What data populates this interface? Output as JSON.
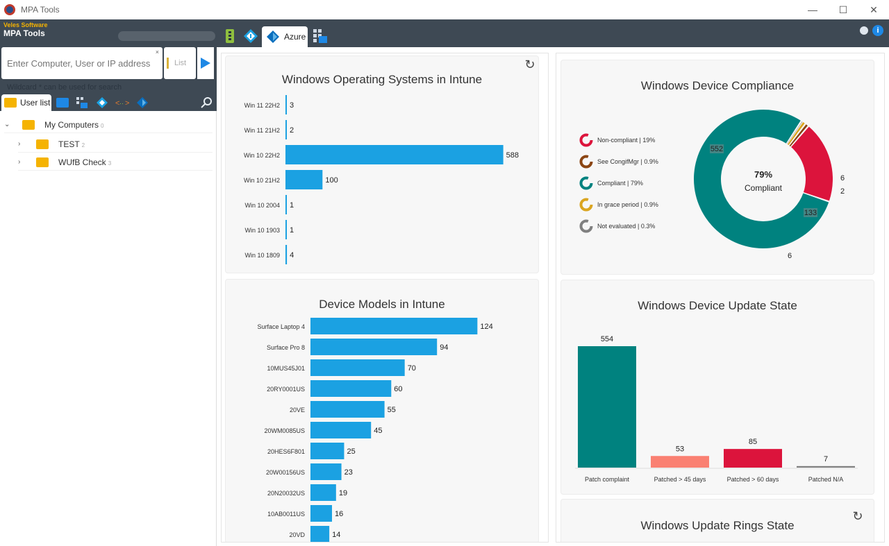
{
  "window": {
    "title": "MPA Tools",
    "minimize": "—",
    "maximize": "☐",
    "close": "✕"
  },
  "brand": {
    "company": "Veles Software",
    "product": "MPA Tools"
  },
  "top_tabs": {
    "azure_label": "Azure"
  },
  "search": {
    "placeholder": "Enter Computer, User or IP address",
    "clear": "×",
    "list_label": "List",
    "hint": "Wildcard * can be used for search"
  },
  "side_tabs": {
    "user_list": "User list"
  },
  "tree": {
    "root": {
      "label": "My Computers",
      "count": "0"
    },
    "children": [
      {
        "label": "TEST",
        "count": "2"
      },
      {
        "label": "WUfB Check",
        "count": "3"
      }
    ]
  },
  "panels": {
    "os": {
      "title": "Windows Operating Systems in Intune"
    },
    "models": {
      "title": "Device Models in Intune"
    },
    "compliance": {
      "title": "Windows Device Compliance",
      "center_pct": "79%",
      "center_label": "Compliant"
    },
    "update": {
      "title": "Windows Device Update State"
    },
    "rings": {
      "title": "Windows Update Rings State"
    }
  },
  "colors": {
    "bar_blue": "#1ba1e2",
    "teal": "#00827f",
    "crimson": "#dc143c",
    "salmon": "#fa8072",
    "brown": "#8b4513",
    "gold": "#daa520",
    "gray": "#808080"
  },
  "chart_data": [
    {
      "type": "bar",
      "orientation": "horizontal",
      "title": "Windows Operating Systems in Intune",
      "categories": [
        "Win 11  22H2",
        "Win 11  21H2",
        "Win 10  22H2",
        "Win 10  21H2",
        "Win 10  2004",
        "Win 10  1903",
        "Win 10  1809"
      ],
      "values": [
        3,
        2,
        588,
        100,
        1,
        1,
        4
      ],
      "xlim": [
        0,
        600
      ]
    },
    {
      "type": "bar",
      "orientation": "horizontal",
      "title": "Device Models in Intune",
      "categories": [
        "Surface Laptop 4",
        "Surface Pro 8",
        "10MUS45J01",
        "20RY0001US",
        "20VE",
        "20WM0085US",
        "20HES6F801",
        "20W00156US",
        "20N20032US",
        "10AB0011US",
        "20VD"
      ],
      "values": [
        124,
        94,
        70,
        60,
        55,
        45,
        25,
        23,
        19,
        16,
        14
      ],
      "xlim": [
        0,
        130
      ]
    },
    {
      "type": "pie",
      "donut": true,
      "title": "Windows Device Compliance",
      "legend_position": "left",
      "series": [
        {
          "name": "Non-compliant | 19%",
          "value": 133,
          "color": "#dc143c"
        },
        {
          "name": "See CongifMgr | 0.9%",
          "value": 6,
          "color": "#8b4513"
        },
        {
          "name": "Compliant | 79%",
          "value": 552,
          "color": "#00827f"
        },
        {
          "name": "In grace period | 0.9%",
          "value": 6,
          "color": "#daa520"
        },
        {
          "name": "Not evaluated | 0.3%",
          "value": 2,
          "color": "#808080"
        }
      ],
      "slice_labels": [
        "133",
        "6",
        "552",
        "6",
        "2"
      ]
    },
    {
      "type": "bar",
      "title": "Windows Device Update State",
      "categories": [
        "Patch complaint",
        "Patched > 45 days",
        "Patched > 60 days",
        "Patched N/A"
      ],
      "values": [
        554,
        53,
        85,
        7
      ],
      "colors": [
        "#00827f",
        "#fa8072",
        "#dc143c",
        "#808080"
      ],
      "ylim": [
        0,
        554
      ]
    }
  ]
}
